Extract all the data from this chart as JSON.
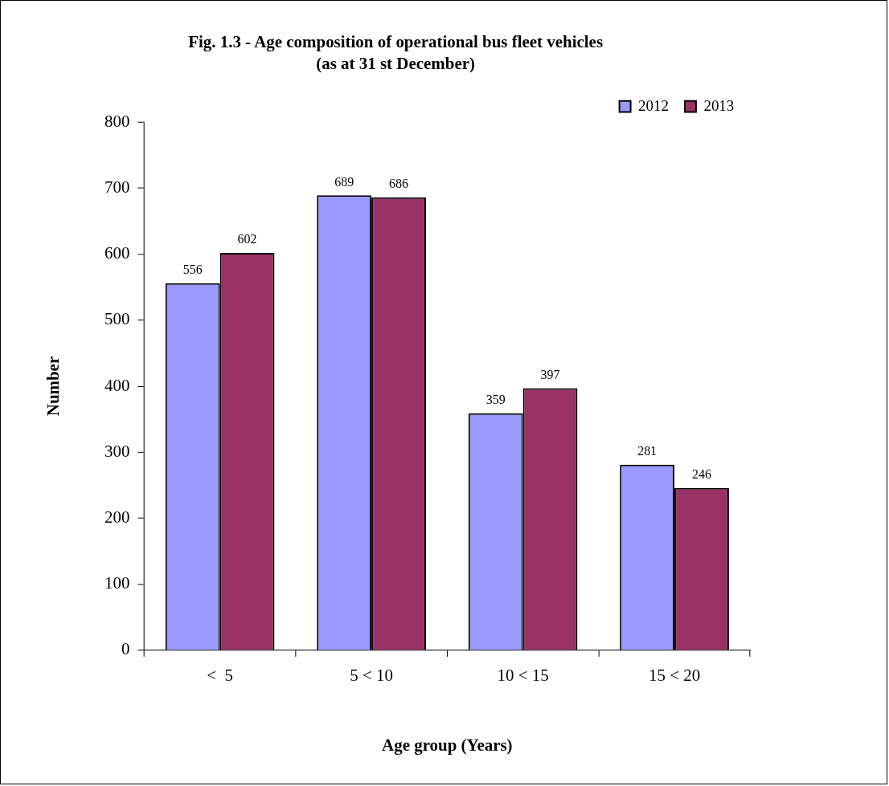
{
  "chart_data": {
    "type": "bar",
    "title": "Fig. 1.3 - Age composition of operational bus fleet vehicles",
    "subtitle": "(as at 31 st December)",
    "xlabel": "Age group (Years)",
    "ylabel": "Number",
    "categories": [
      "<  5",
      "5 < 10",
      "10 < 15",
      "15 < 20"
    ],
    "series": [
      {
        "name": "2012",
        "color": "#9999ff",
        "values": [
          556,
          689,
          359,
          281
        ]
      },
      {
        "name": "2013",
        "color": "#993366",
        "values": [
          602,
          686,
          397,
          246
        ]
      }
    ],
    "ylim": [
      0,
      800
    ],
    "yticks": [
      0,
      100,
      200,
      300,
      400,
      500,
      600,
      700,
      800
    ],
    "grid": false,
    "legend": "top right",
    "data_labels": true
  }
}
